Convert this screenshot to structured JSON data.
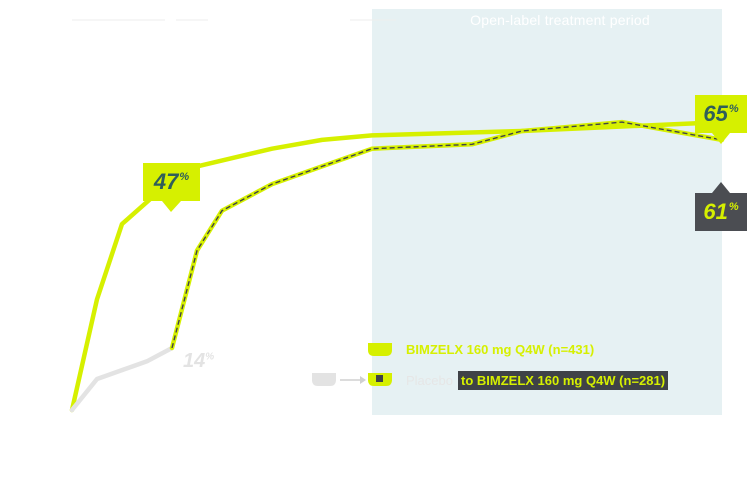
{
  "chart_data": {
    "type": "line",
    "title": "",
    "xlabel": "",
    "ylabel": "",
    "xlim": [
      0,
      52
    ],
    "ylim": [
      0,
      70
    ],
    "annotations": {
      "period_label": "Open-label treatment period",
      "period_start": 24
    },
    "series": [
      {
        "name": "BIMZELX 160 mg Q4W (n=431)",
        "color": "#d6f000",
        "style": "solid",
        "x": [
          0,
          2,
          4,
          6,
          8,
          10,
          16,
          20,
          24,
          36,
          52
        ],
        "y": [
          0,
          25,
          42,
          47,
          52,
          55,
          59,
          61,
          62,
          63,
          65
        ]
      },
      {
        "name": "Placebo",
        "color": "#e3e3e3",
        "style": "solid",
        "x": [
          0,
          2,
          4,
          6,
          8
        ],
        "y": [
          0,
          7,
          9,
          11,
          14
        ]
      },
      {
        "name": "to BIMZELX 160 mg Q4W (n=281)",
        "color": "#d6f000",
        "style": "dashed",
        "x": [
          8,
          10,
          12,
          16,
          20,
          24,
          32,
          36,
          40,
          44,
          48,
          52
        ],
        "y": [
          14,
          36,
          45,
          51,
          55,
          59,
          60,
          63,
          64,
          65,
          63,
          61
        ]
      }
    ],
    "data_labels": {
      "bkz_week6": "47",
      "pbo_week8": "14",
      "bkz_end": "65",
      "switch_end": "61",
      "unit": "%"
    }
  },
  "legend": {
    "item1": "BIMZELX 160 mg Q4W (n=431)",
    "item2_prefix": "Placebo",
    "item2": "to BIMZELX 160 mg Q4W (n=281)"
  }
}
